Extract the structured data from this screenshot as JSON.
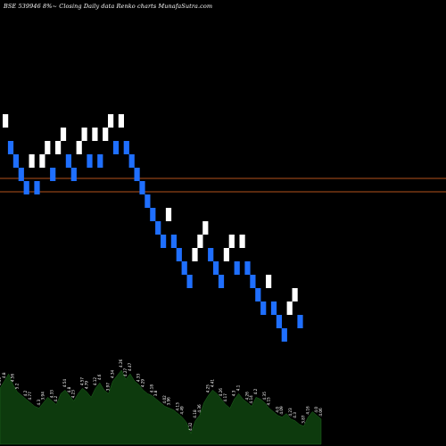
{
  "header": {
    "title": "BSE 539946 8%~ Closing Daily data Renko charts MunafaSutra.com"
  },
  "chart_data": {
    "type": "renko",
    "colors": {
      "up": "#ffffff",
      "down": "#1f6fff",
      "level": "#b5521b",
      "volume": "#0d3a0d",
      "background": "#000000"
    },
    "reference_levels": [
      {
        "value": 60
      },
      {
        "value": 55
      }
    ],
    "y_range": [
      -20,
      90
    ],
    "bricks": [
      {
        "dir": "up",
        "value": 79
      },
      {
        "dir": "down",
        "value": 74
      },
      {
        "dir": "down",
        "value": 69
      },
      {
        "dir": "down",
        "value": 64
      },
      {
        "dir": "down",
        "value": 59
      },
      {
        "dir": "up",
        "value": 64
      },
      {
        "dir": "down",
        "value": 59
      },
      {
        "dir": "up",
        "value": 64
      },
      {
        "dir": "up",
        "value": 69
      },
      {
        "dir": "down",
        "value": 64
      },
      {
        "dir": "up",
        "value": 69
      },
      {
        "dir": "up",
        "value": 74
      },
      {
        "dir": "down",
        "value": 69
      },
      {
        "dir": "down",
        "value": 64
      },
      {
        "dir": "up",
        "value": 69
      },
      {
        "dir": "up",
        "value": 74
      },
      {
        "dir": "down",
        "value": 69
      },
      {
        "dir": "up",
        "value": 74
      },
      {
        "dir": "down",
        "value": 69
      },
      {
        "dir": "up",
        "value": 74
      },
      {
        "dir": "up",
        "value": 79
      },
      {
        "dir": "down",
        "value": 74
      },
      {
        "dir": "up",
        "value": 79
      },
      {
        "dir": "down",
        "value": 74
      },
      {
        "dir": "down",
        "value": 69
      },
      {
        "dir": "down",
        "value": 64
      },
      {
        "dir": "down",
        "value": 59
      },
      {
        "dir": "down",
        "value": 54
      },
      {
        "dir": "down",
        "value": 49
      },
      {
        "dir": "down",
        "value": 44
      },
      {
        "dir": "down",
        "value": 39
      },
      {
        "dir": "up",
        "value": 44
      },
      {
        "dir": "down",
        "value": 39
      },
      {
        "dir": "down",
        "value": 34
      },
      {
        "dir": "down",
        "value": 29
      },
      {
        "dir": "down",
        "value": 24
      },
      {
        "dir": "up",
        "value": 29
      },
      {
        "dir": "up",
        "value": 34
      },
      {
        "dir": "up",
        "value": 39
      },
      {
        "dir": "down",
        "value": 34
      },
      {
        "dir": "down",
        "value": 29
      },
      {
        "dir": "down",
        "value": 24
      },
      {
        "dir": "up",
        "value": 29
      },
      {
        "dir": "up",
        "value": 34
      },
      {
        "dir": "down",
        "value": 29
      },
      {
        "dir": "up",
        "value": 34
      },
      {
        "dir": "down",
        "value": 29
      },
      {
        "dir": "down",
        "value": 24
      },
      {
        "dir": "down",
        "value": 19
      },
      {
        "dir": "down",
        "value": 14
      },
      {
        "dir": "up",
        "value": 19
      },
      {
        "dir": "down",
        "value": 14
      },
      {
        "dir": "down",
        "value": 9
      },
      {
        "dir": "down",
        "value": 4
      },
      {
        "dir": "up",
        "value": 9
      },
      {
        "dir": "up",
        "value": 14
      },
      {
        "dir": "down",
        "value": 9
      }
    ],
    "volume": {
      "values": [
        62,
        70,
        78,
        66,
        58,
        54,
        50,
        46,
        42,
        40,
        46,
        52,
        48,
        44,
        56,
        60,
        54,
        48,
        56,
        62,
        58,
        52,
        62,
        68,
        60,
        56,
        70,
        76,
        82,
        72,
        78,
        70,
        66,
        60,
        56,
        54,
        50,
        46,
        42,
        40,
        38,
        34,
        30,
        24,
        12,
        26,
        32,
        46,
        54,
        60,
        56,
        50,
        44,
        40,
        50,
        56,
        50,
        46,
        42,
        52,
        50,
        46,
        40,
        36,
        32,
        30,
        34,
        28,
        26,
        22,
        20,
        30,
        36,
        32,
        28
      ]
    },
    "volume_labels": [
      "3.56",
      "4.8",
      "4.56",
      "5.2",
      "4.2",
      "4.77",
      "4.3",
      "3.94",
      "4.33",
      "4.2",
      "4.54",
      "4.8",
      "4.23",
      "4.57",
      "4.79",
      "4.12",
      "4.6",
      "3.97",
      "4.34",
      "4.26",
      "4.27",
      "4.47",
      "4.33",
      "4.29",
      "4.18",
      "3.8",
      "4.02",
      "3.96",
      "4.13",
      "4.49",
      "4.32",
      "4.18",
      "4.36",
      "4.25",
      "4.41",
      "4.26",
      "4.17",
      "4.3",
      "4.1",
      "4.26",
      "4.14",
      "4.2",
      "4.35",
      "4.15",
      "4.0",
      "4.09",
      "4.23",
      "4.3",
      "3.87",
      "4.16",
      "4.0",
      "4.06"
    ]
  }
}
